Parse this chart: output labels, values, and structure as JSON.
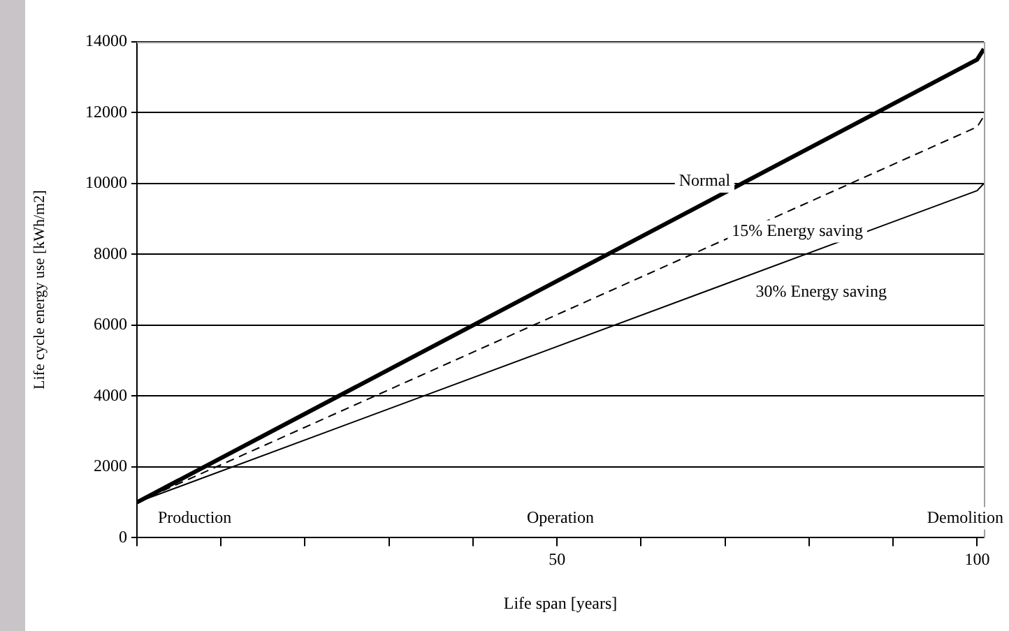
{
  "chart_data": {
    "type": "line",
    "xlabel": "Life span [years]",
    "ylabel": "Life cycle energy use [kWh/m2]",
    "x": [
      0,
      100,
      100.8
    ],
    "series": [
      {
        "name": "Normal",
        "color": "#000000",
        "values": [
          1000,
          13500,
          13800
        ],
        "line_style": "solid"
      },
      {
        "name": "15% Energy saving",
        "color": "#000000",
        "values": [
          1000,
          11600,
          11900
        ],
        "line_style": "dashed"
      },
      {
        "name": "30% Energy saving",
        "color": "#000000",
        "values": [
          1000,
          9800,
          10000
        ],
        "line_style": "solid"
      }
    ],
    "xlim": [
      0,
      100.8
    ],
    "xticks": [
      {
        "value": 0,
        "label": null
      },
      {
        "value": 10,
        "label": null
      },
      {
        "value": 20,
        "label": null
      },
      {
        "value": 30,
        "label": null
      },
      {
        "value": 40,
        "label": null
      },
      50,
      {
        "value": 60,
        "label": null
      },
      {
        "value": 70,
        "label": null
      },
      {
        "value": 80,
        "label": null
      },
      {
        "value": 90,
        "label": null
      },
      100
    ],
    "ylim": [
      0,
      14000
    ],
    "yticks": [
      0,
      2000,
      4000,
      6000,
      8000,
      10000,
      12000,
      14000
    ],
    "grid": "y",
    "legend": false,
    "marker": "none",
    "annotations": [
      "Production",
      "Operation",
      "Demolition"
    ]
  }
}
